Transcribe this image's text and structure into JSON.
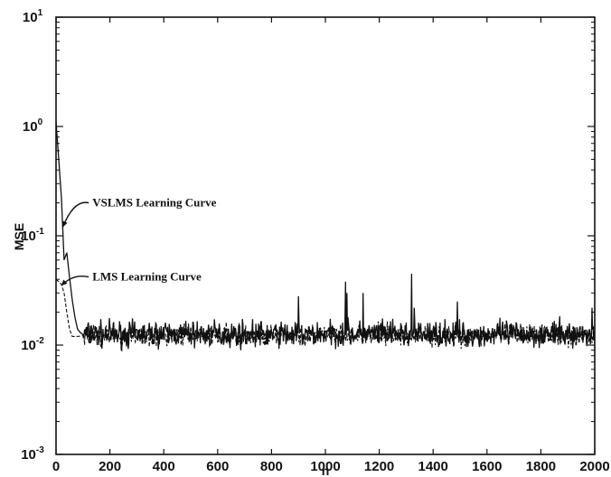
{
  "chart_data": {
    "type": "line",
    "title": "",
    "xlabel": "n",
    "ylabel": "MSE",
    "xlim": [
      0,
      2000
    ],
    "ylim": [
      0.001,
      10
    ],
    "yscale": "log",
    "grid": false,
    "legend": "none",
    "x_ticks": [
      "0",
      "200",
      "400",
      "600",
      "800",
      "1000",
      "1200",
      "1400",
      "1600",
      "1800",
      "2000"
    ],
    "y_ticks": [
      {
        "base": "10",
        "exp": "-3",
        "value": 0.001
      },
      {
        "base": "10",
        "exp": "-2",
        "value": 0.01
      },
      {
        "base": "10",
        "exp": "-1",
        "value": 0.1
      },
      {
        "base": "10",
        "exp": "0",
        "value": 1
      },
      {
        "base": "10",
        "exp": "1",
        "value": 10
      }
    ],
    "series": [
      {
        "style": "solid",
        "color": "#111111",
        "points": [
          [
            0,
            1.1
          ],
          [
            10,
            0.5
          ],
          [
            20,
            0.22
          ],
          [
            30,
            0.12
          ],
          [
            40,
            0.07
          ],
          [
            50,
            0.042
          ],
          [
            60,
            0.026
          ],
          [
            70,
            0.018
          ],
          [
            80,
            0.014
          ],
          [
            90,
            0.013
          ],
          [
            100,
            0.0125
          ]
        ],
        "steady_state": {
          "from": 100,
          "to": 2000,
          "center": 0.0125,
          "spread_min": 0.0085,
          "spread_max": 0.019
        },
        "spikes": [
          [
            30,
            0.06
          ],
          [
            900,
            0.028
          ],
          [
            1075,
            0.038
          ],
          [
            1080,
            0.03
          ],
          [
            1140,
            0.03
          ],
          [
            1320,
            0.045
          ],
          [
            1330,
            0.022
          ],
          [
            1490,
            0.025
          ],
          [
            1990,
            0.022
          ]
        ]
      },
      {
        "style": "dashed",
        "color": "#111111",
        "points": [
          [
            0,
            0.04
          ],
          [
            10,
            0.038
          ],
          [
            20,
            0.036
          ],
          [
            30,
            0.03
          ],
          [
            40,
            0.02
          ],
          [
            50,
            0.014
          ],
          [
            60,
            0.012
          ],
          [
            80,
            0.012
          ],
          [
            100,
            0.0122
          ]
        ],
        "steady_state": {
          "from": 100,
          "to": 2000,
          "center": 0.0122,
          "spread_min": 0.009,
          "spread_max": 0.017
        }
      }
    ],
    "annotations": [
      {
        "text": "VSLMS Learning Curve",
        "x": 135,
        "y": 0.2,
        "arrow_to": [
          25,
          0.12
        ]
      },
      {
        "text": "LMS Learning Curve",
        "x": 135,
        "y": 0.042,
        "arrow_to": [
          20,
          0.035
        ]
      }
    ]
  }
}
